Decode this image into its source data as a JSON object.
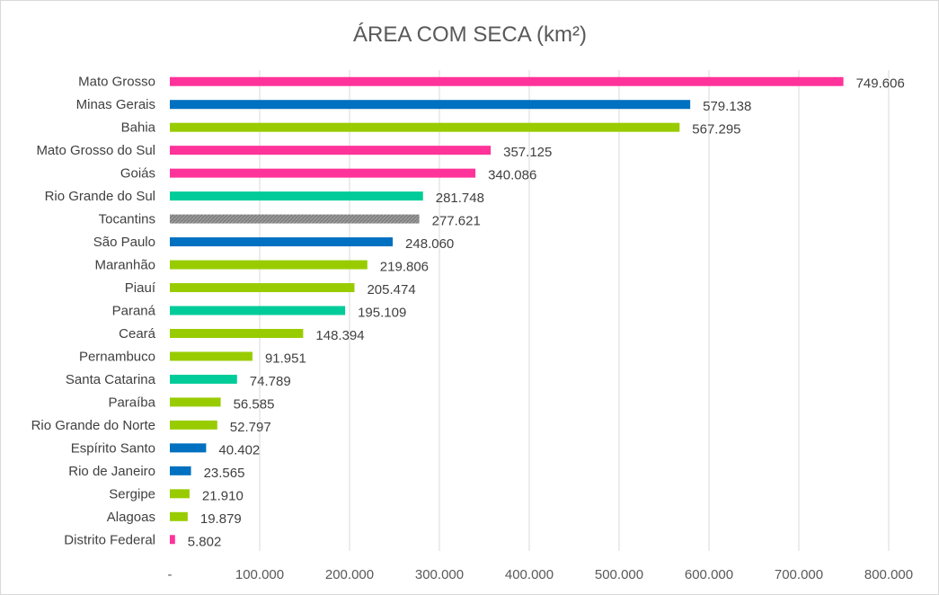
{
  "chart_data": {
    "type": "bar",
    "orientation": "horizontal",
    "title": "ÁREA COM SECA (km²)",
    "xlabel": "",
    "ylabel": "",
    "xlim": [
      0,
      800000
    ],
    "grid": true,
    "legend": "none",
    "tick_values": [
      0,
      100000,
      200000,
      300000,
      400000,
      500000,
      600000,
      700000,
      800000
    ],
    "tick_labels": [
      "-",
      "100.000",
      "200.000",
      "300.000",
      "400.000",
      "500.000",
      "600.000",
      "700.000",
      "800.000"
    ],
    "colors": {
      "pink": "#ff3399",
      "blue": "#0070c0",
      "green": "#99cc00",
      "teal": "#00cc99",
      "gray": "#808080"
    },
    "bars": [
      {
        "category": "Mato Grosso",
        "value": 749606,
        "label": "749.606",
        "color": "pink"
      },
      {
        "category": "Minas Gerais",
        "value": 579138,
        "label": "579.138",
        "color": "blue"
      },
      {
        "category": "Bahia",
        "value": 567295,
        "label": "567.295",
        "color": "green"
      },
      {
        "category": "Mato Grosso do Sul",
        "value": 357125,
        "label": "357.125",
        "color": "pink"
      },
      {
        "category": "Goiás",
        "value": 340086,
        "label": "340.086",
        "color": "pink"
      },
      {
        "category": "Rio Grande do Sul",
        "value": 281748,
        "label": "281.748",
        "color": "teal"
      },
      {
        "category": "Tocantins",
        "value": 277621,
        "label": "277.621",
        "color": "gray"
      },
      {
        "category": "São Paulo",
        "value": 248060,
        "label": "248.060",
        "color": "blue"
      },
      {
        "category": "Maranhão",
        "value": 219806,
        "label": "219.806",
        "color": "green"
      },
      {
        "category": "Piauí",
        "value": 205474,
        "label": "205.474",
        "color": "green"
      },
      {
        "category": "Paraná",
        "value": 195109,
        "label": "195.109",
        "color": "teal"
      },
      {
        "category": "Ceará",
        "value": 148394,
        "label": "148.394",
        "color": "green"
      },
      {
        "category": "Pernambuco",
        "value": 91951,
        "label": "91.951",
        "color": "green"
      },
      {
        "category": "Santa Catarina",
        "value": 74789,
        "label": "74.789",
        "color": "teal"
      },
      {
        "category": "Paraíba",
        "value": 56585,
        "label": "56.585",
        "color": "green"
      },
      {
        "category": "Rio Grande do Norte",
        "value": 52797,
        "label": "52.797",
        "color": "green"
      },
      {
        "category": "Espírito Santo",
        "value": 40402,
        "label": "40.402",
        "color": "blue"
      },
      {
        "category": "Rio de Janeiro",
        "value": 23565,
        "label": "23.565",
        "color": "blue"
      },
      {
        "category": "Sergipe",
        "value": 21910,
        "label": "21.910",
        "color": "green"
      },
      {
        "category": "Alagoas",
        "value": 19879,
        "label": "19.879",
        "color": "green"
      },
      {
        "category": "Distrito Federal",
        "value": 5802,
        "label": "5.802",
        "color": "pink"
      }
    ]
  }
}
